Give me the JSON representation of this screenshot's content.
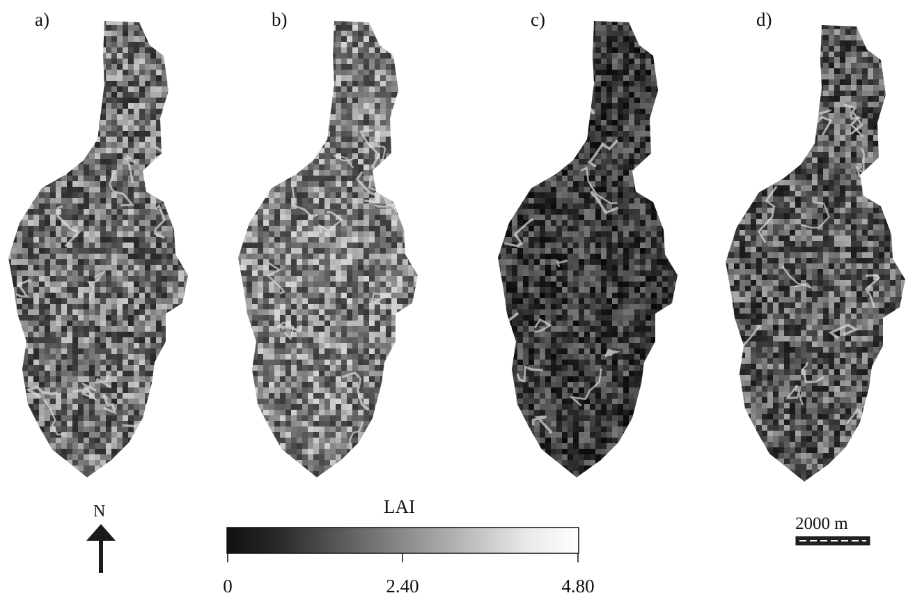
{
  "panels": [
    {
      "label": "a)",
      "tone": "medium"
    },
    {
      "label": "b)",
      "tone": "medium-light"
    },
    {
      "label": "c)",
      "tone": "dark"
    },
    {
      "label": "d)",
      "tone": "medium-dark"
    }
  ],
  "legend": {
    "title": "LAI",
    "min_label": "0",
    "mid_label": "2.40",
    "max_label": "4.80",
    "gradient_colors": [
      "#111111",
      "#ffffff"
    ]
  },
  "north_arrow": {
    "label": "N",
    "icon": "north-arrow-icon"
  },
  "scale_bar": {
    "label": "2000 m",
    "icon": "scale-bar-icon"
  }
}
